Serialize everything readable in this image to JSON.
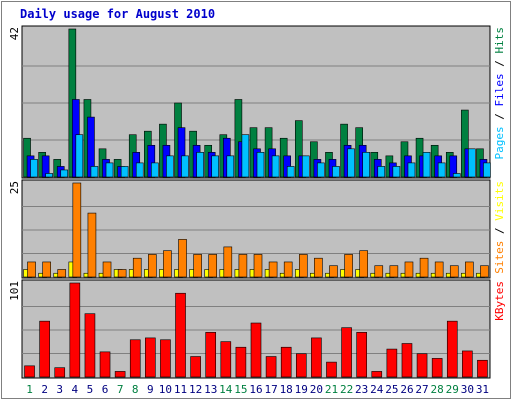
{
  "chart_data": {
    "type": "bar",
    "title": "Daily usage for August 2010",
    "categories": [
      "1",
      "2",
      "3",
      "4",
      "5",
      "6",
      "7",
      "8",
      "9",
      "10",
      "11",
      "12",
      "13",
      "14",
      "15",
      "16",
      "17",
      "18",
      "19",
      "20",
      "21",
      "22",
      "23",
      "24",
      "25",
      "26",
      "27",
      "28",
      "29",
      "30",
      "31"
    ],
    "weekend_days": [
      "1",
      "7",
      "8",
      "14",
      "15",
      "21",
      "22",
      "28",
      "29"
    ],
    "colors": {
      "background": "#c0c0c0",
      "title": "#0000cc",
      "hits": "#008040",
      "files": "#0000ff",
      "pages": "#00c0ff",
      "visits": "#ffff00",
      "sites": "#ff8000",
      "kbytes": "#ff0000",
      "weekday_label": "#000080",
      "weekend_label": "#008040"
    },
    "panels": [
      {
        "name": "hits-files-pages",
        "ymax_label": "42",
        "ylim": [
          0,
          42
        ],
        "legend": [
          {
            "text": "Pages",
            "color": "#00c0ff"
          },
          {
            "text": " / ",
            "color": "#000000"
          },
          {
            "text": "Files",
            "color": "#0000ff"
          },
          {
            "text": " / ",
            "color": "#000000"
          },
          {
            "text": "Hits",
            "color": "#008040"
          }
        ],
        "series": [
          {
            "key": "hits",
            "color": "#008040",
            "values": [
              11,
              7,
              5,
              42,
              22,
              8,
              5,
              12,
              13,
              15,
              21,
              13,
              9,
              12,
              22,
              14,
              14,
              11,
              16,
              10,
              7,
              15,
              14,
              7,
              6,
              10,
              11,
              9,
              7,
              19,
              8
            ]
          },
          {
            "key": "files",
            "color": "#0000ff",
            "values": [
              6,
              6,
              3,
              22,
              17,
              5,
              3,
              7,
              9,
              9,
              14,
              9,
              7,
              11,
              10,
              8,
              8,
              6,
              6,
              5,
              5,
              9,
              9,
              5,
              4,
              6,
              6,
              6,
              6,
              8,
              5
            ]
          },
          {
            "key": "pages",
            "color": "#00c0ff",
            "values": [
              5,
              1,
              2,
              12,
              3,
              4,
              3,
              4,
              4,
              6,
              6,
              7,
              6,
              6,
              12,
              7,
              6,
              3,
              6,
              4,
              3,
              8,
              7,
              3,
              3,
              4,
              7,
              4,
              1,
              8,
              4
            ]
          }
        ]
      },
      {
        "name": "visits-sites",
        "ymax_label": "25",
        "ylim": [
          0,
          25
        ],
        "legend": [
          {
            "text": "Sites",
            "color": "#ff8000"
          },
          {
            "text": " / ",
            "color": "#000000"
          },
          {
            "text": "Visits",
            "color": "#ffff00"
          }
        ],
        "series": [
          {
            "key": "visits",
            "color": "#ffff00",
            "values": [
              2,
              1,
              1,
              4,
              1,
              1,
              2,
              2,
              2,
              2,
              2,
              2,
              2,
              2,
              2,
              2,
              2,
              1,
              2,
              1,
              1,
              2,
              2,
              1,
              1,
              1,
              1,
              1,
              1,
              1,
              1
            ]
          },
          {
            "key": "sites",
            "color": "#ff8000",
            "values": [
              4,
              4,
              2,
              25,
              17,
              4,
              2,
              5,
              6,
              7,
              10,
              6,
              6,
              8,
              6,
              6,
              4,
              4,
              6,
              5,
              3,
              6,
              7,
              3,
              3,
              4,
              5,
              4,
              3,
              4,
              3
            ]
          }
        ]
      },
      {
        "name": "kbytes",
        "ymax_label": "101",
        "ylim": [
          0,
          101
        ],
        "legend": [
          {
            "text": "KBytes",
            "color": "#ff0000"
          }
        ],
        "series": [
          {
            "key": "kbytes",
            "color": "#ff0000",
            "values": [
              12,
              60,
              10,
              101,
              68,
              27,
              6,
              40,
              42,
              40,
              90,
              22,
              48,
              38,
              32,
              58,
              22,
              32,
              25,
              42,
              16,
              53,
              48,
              6,
              30,
              36,
              25,
              20,
              60,
              28,
              18
            ]
          }
        ]
      }
    ]
  }
}
